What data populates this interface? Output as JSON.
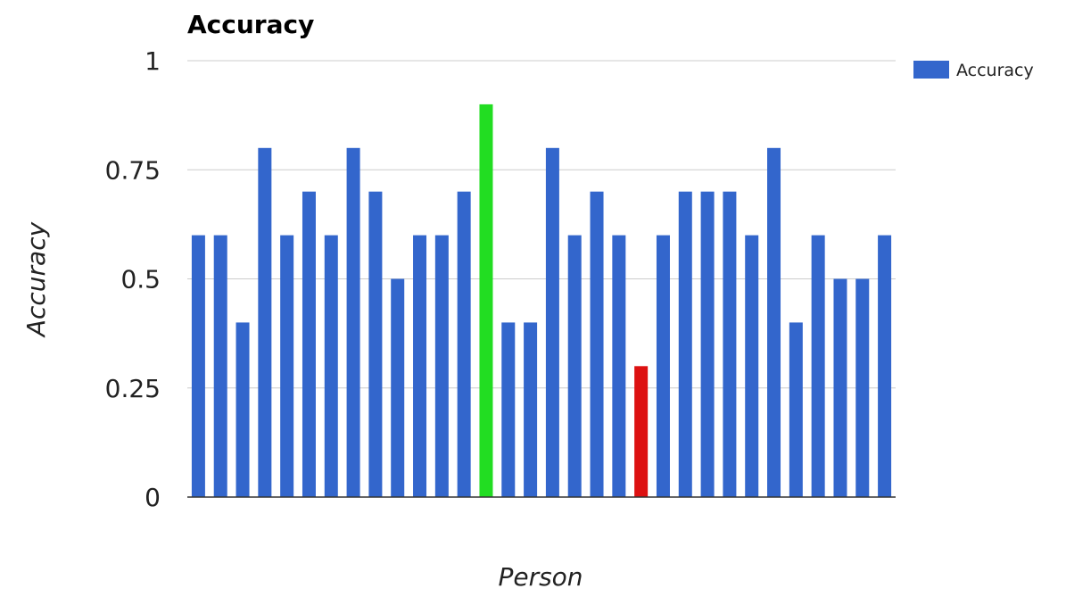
{
  "chart_data": {
    "type": "bar",
    "title": "Accuracy",
    "xlabel": "Person",
    "ylabel": "Accuracy",
    "ylim": [
      0,
      1
    ],
    "yticks": [
      "0",
      "0.25",
      "0.5",
      "0.75",
      "1"
    ],
    "ytick_values": [
      0,
      0.25,
      0.5,
      0.75,
      1
    ],
    "grid": true,
    "legend": {
      "position": "right",
      "entries": [
        "Accuracy"
      ]
    },
    "series": [
      {
        "name": "Accuracy",
        "color": "#3366cc",
        "values": [
          0.6,
          0.6,
          0.4,
          0.8,
          0.6,
          0.7,
          0.6,
          0.8,
          0.7,
          0.5,
          0.6,
          0.6,
          0.7,
          0.9,
          0.4,
          0.4,
          0.8,
          0.6,
          0.7,
          0.6,
          0.3,
          0.6,
          0.7,
          0.7,
          0.7,
          0.6,
          0.8,
          0.4,
          0.6,
          0.5,
          0.5,
          0.6
        ]
      }
    ],
    "highlight_colors": {
      "max": "#22dd22",
      "min": "#dd1111"
    },
    "highlighted_bars": {
      "max_index": 13,
      "min_index": 20
    }
  },
  "colors": {
    "bar": "#3366cc",
    "grid": "#cccccc",
    "axis": "#333333"
  }
}
